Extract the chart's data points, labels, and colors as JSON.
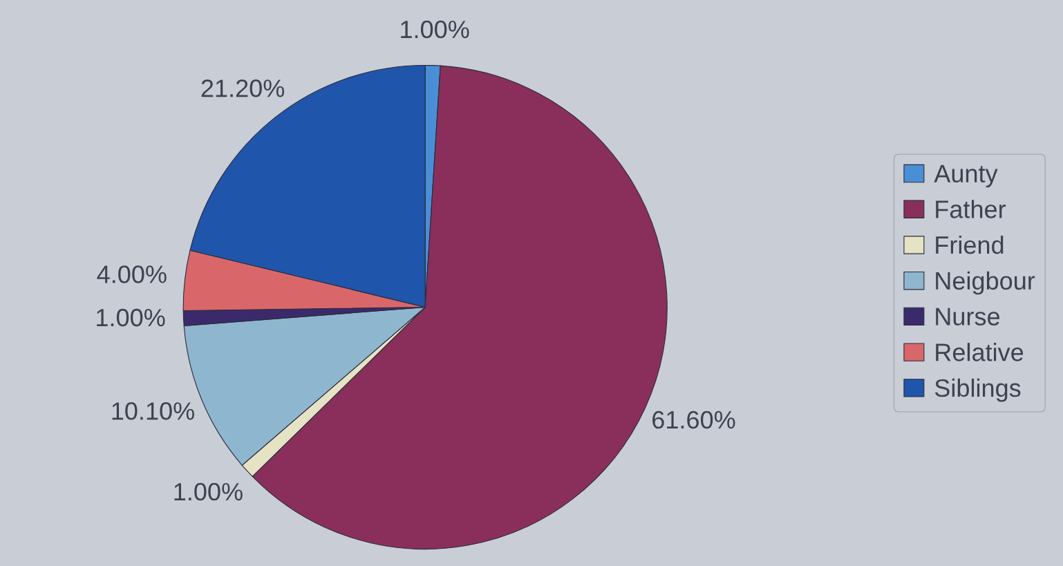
{
  "chart_data": {
    "type": "pie",
    "categories": [
      "Aunty",
      "Father",
      "Friend",
      "Neigbour",
      "Nurse",
      "Relative",
      "Siblings"
    ],
    "values": [
      1.0,
      61.6,
      1.0,
      10.1,
      1.0,
      4.0,
      21.2
    ],
    "value_labels": [
      "1.00%",
      "61.60%",
      "1.00%",
      "10.10%",
      "1.00%",
      "4.00%",
      "21.20%"
    ],
    "colors": [
      "#4a8fd6",
      "#8a2f5c",
      "#e6e2c4",
      "#8fb6cf",
      "#3b2a6b",
      "#d9676a",
      "#1f55aa"
    ],
    "legend": "right"
  }
}
